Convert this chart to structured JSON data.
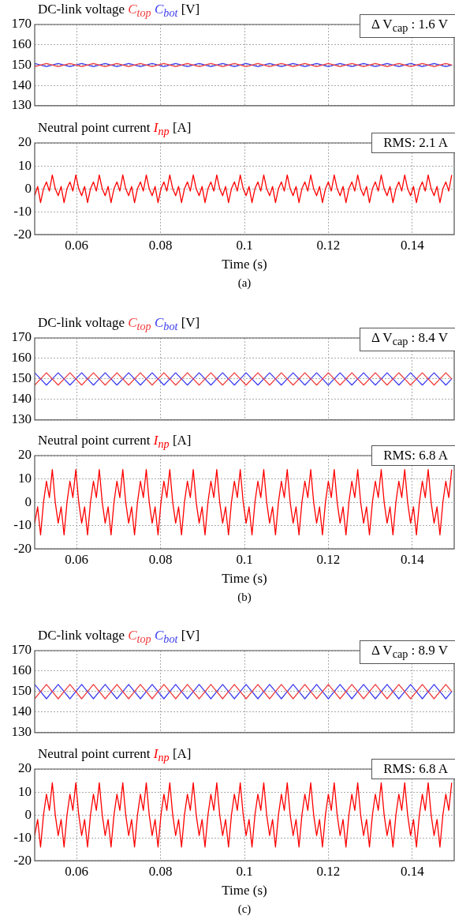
{
  "chart_data": [
    {
      "type": "line",
      "title": "DC-link voltage",
      "ylabel": "[V]",
      "legend": "top left",
      "tick_labels": "y",
      "grid": true,
      "xlim": [
        0.05,
        0.15
      ],
      "xticks": [
        0.06,
        0.08,
        0.1,
        0.12,
        0.14
      ],
      "ylim": [
        130,
        170
      ],
      "yticks": [
        130,
        140,
        150,
        160,
        170
      ],
      "annotations": [
        "Δ V$_{cap}$ : 1.6 V"
      ],
      "x": [
        0.05,
        0.0514,
        0.0528,
        0.0542,
        0.0556,
        0.057,
        0.0584,
        0.0598,
        0.0612,
        0.0626,
        0.064,
        0.0654,
        0.0668,
        0.0682,
        0.0696,
        0.071,
        0.0724,
        0.0738,
        0.0752,
        0.0766,
        0.078,
        0.0794,
        0.0808,
        0.0822,
        0.0836,
        0.085,
        0.0864,
        0.0878,
        0.0892,
        0.0906,
        0.092,
        0.0934,
        0.0948,
        0.0962,
        0.0976,
        0.099,
        0.1004,
        0.1018,
        0.1032,
        0.1046,
        0.106,
        0.1074,
        0.1088,
        0.1102,
        0.1116,
        0.113,
        0.1144,
        0.1158,
        0.1172,
        0.1186,
        0.12,
        0.1214,
        0.1228,
        0.1242,
        0.1256,
        0.127,
        0.1284,
        0.1298,
        0.1312,
        0.1326,
        0.134,
        0.1354,
        0.1368,
        0.1382,
        0.1396,
        0.141,
        0.1424,
        0.1438,
        0.1452,
        0.1466,
        0.148,
        0.1494
      ],
      "series": [
        {
          "name": "C$_{top}$",
          "color": "#f03c3c",
          "values": [
            149.2,
            150,
            150.8,
            150,
            149.2,
            150,
            150.8,
            150,
            149.2,
            150,
            150.8,
            150,
            149.2,
            150,
            150.8,
            150,
            149.2,
            150,
            150.8,
            150,
            149.2,
            150,
            150.8,
            150,
            149.2,
            150,
            150.8,
            150,
            149.2,
            150,
            150.8,
            150,
            149.2,
            150,
            150.8,
            150,
            149.2,
            150,
            150.8,
            150,
            149.2,
            150,
            150.8,
            150,
            149.2,
            150,
            150.8,
            150,
            149.2,
            150,
            150.8,
            150,
            149.2,
            150,
            150.8,
            150,
            149.2,
            150,
            150.8,
            150,
            149.2,
            150,
            150.8,
            150,
            149.2,
            150,
            150.8,
            150,
            149.2,
            150,
            150.8,
            150
          ]
        },
        {
          "name": "C$_{bot}$",
          "color": "#3c3cf0",
          "values": [
            150.8,
            150,
            149.2,
            150,
            150.8,
            150,
            149.2,
            150,
            150.8,
            150,
            149.2,
            150,
            150.8,
            150,
            149.2,
            150,
            150.8,
            150,
            149.2,
            150,
            150.8,
            150,
            149.2,
            150,
            150.8,
            150,
            149.2,
            150,
            150.8,
            150,
            149.2,
            150,
            150.8,
            150,
            149.2,
            150,
            150.8,
            150,
            149.2,
            150,
            150.8,
            150,
            149.2,
            150,
            150.8,
            150,
            149.2,
            150,
            150.8,
            150,
            149.2,
            150,
            150.8,
            150,
            149.2,
            150,
            150.8,
            150,
            149.2,
            150,
            150.8,
            150,
            149.2,
            150,
            150.8,
            150,
            149.2,
            150,
            150.8,
            150,
            149.2,
            150
          ]
        }
      ]
    },
    {
      "type": "line",
      "title": "Neutral point current",
      "ylabel": "[A]",
      "xlabel": "Time (s)",
      "legend": "top left",
      "grid": true,
      "xlim": [
        0.05,
        0.15
      ],
      "xticks": [
        0.06,
        0.08,
        0.1,
        0.12,
        0.14
      ],
      "ylim": [
        -20,
        20
      ],
      "yticks": [
        -20,
        -10,
        0,
        10,
        20
      ],
      "annotations": [
        "RMS: 2.1 A",
        "(a)"
      ],
      "x": [
        0.05,
        0.0507,
        0.0514,
        0.0521,
        0.0528,
        0.0535,
        0.0542,
        0.0549,
        0.0556,
        0.0563,
        0.057,
        0.0577,
        0.0584,
        0.0591,
        0.0598,
        0.0605,
        0.0612,
        0.0619,
        0.0626,
        0.0633,
        0.064,
        0.0647,
        0.0654,
        0.0661,
        0.0668,
        0.0675,
        0.0682,
        0.0689,
        0.0696,
        0.0703,
        0.071,
        0.0717,
        0.0724,
        0.0731,
        0.0738,
        0.0745,
        0.0752,
        0.0759,
        0.0766,
        0.0773,
        0.078,
        0.0787,
        0.0794,
        0.0801,
        0.0808,
        0.0815,
        0.0822,
        0.0829,
        0.0836,
        0.0843,
        0.085,
        0.0857,
        0.0864,
        0.0871,
        0.0878,
        0.0885,
        0.0892,
        0.0899,
        0.0906,
        0.0913,
        0.092,
        0.0927,
        0.0934,
        0.0941,
        0.0948,
        0.0955,
        0.0962,
        0.0969,
        0.0976,
        0.0983,
        0.099,
        0.0997,
        0.1004,
        0.1011,
        0.1018,
        0.1025,
        0.1032,
        0.1039,
        0.1046,
        0.1053,
        0.106,
        0.1067,
        0.1074,
        0.1081,
        0.1088,
        0.1095,
        0.1102,
        0.1109,
        0.1116,
        0.1123,
        0.113,
        0.1137,
        0.1144,
        0.1151,
        0.1158,
        0.1165,
        0.1172,
        0.1179,
        0.1186,
        0.1193,
        0.12,
        0.1207,
        0.1214,
        0.1221,
        0.1228,
        0.1235,
        0.1242,
        0.1249,
        0.1256,
        0.1263,
        0.127,
        0.1277,
        0.1284,
        0.1291,
        0.1298,
        0.1305,
        0.1312,
        0.1319,
        0.1326,
        0.1333,
        0.134,
        0.1347,
        0.1354,
        0.1361,
        0.1368,
        0.1375,
        0.1382,
        0.1389,
        0.1396,
        0.1403,
        0.141,
        0.1417,
        0.1424,
        0.1431,
        0.1438,
        0.1445,
        0.1452,
        0.1459,
        0.1466,
        0.1473,
        0.148,
        0.1487,
        0.1494
      ],
      "series": [
        {
          "name": "I$_{np}$",
          "color": "#ff0000",
          "values": [
            -3,
            1,
            -6,
            0,
            3,
            -1,
            6,
            0,
            -3,
            1,
            -6,
            0,
            3,
            -1,
            6,
            0,
            -3,
            1,
            -6,
            0,
            3,
            -1,
            6,
            0,
            -3,
            1,
            -6,
            0,
            3,
            -1,
            6,
            0,
            -3,
            1,
            -6,
            0,
            3,
            -1,
            6,
            0,
            -3,
            1,
            -6,
            0,
            3,
            -1,
            6,
            0,
            -3,
            1,
            -6,
            0,
            3,
            -1,
            6,
            0,
            -3,
            1,
            -6,
            0,
            3,
            -1,
            6,
            0,
            -3,
            1,
            -6,
            0,
            3,
            -1,
            6,
            0,
            -3,
            1,
            -6,
            0,
            3,
            -1,
            6,
            0,
            -3,
            1,
            -6,
            0,
            3,
            -1,
            6,
            0,
            -3,
            1,
            -6,
            0,
            3,
            -1,
            6,
            0,
            -3,
            1,
            -6,
            0,
            3,
            -1,
            6,
            0,
            -3,
            1,
            -6,
            0,
            3,
            -1,
            6,
            0,
            -3,
            1,
            -6,
            0,
            3,
            -1,
            6,
            0,
            -3,
            1,
            -6,
            0,
            3,
            -1,
            6,
            0,
            -3,
            1,
            -6,
            0,
            3,
            -1,
            6,
            0,
            -3,
            1,
            -6,
            0,
            3,
            -1,
            6
          ]
        }
      ]
    },
    {
      "type": "line",
      "title": "DC-link voltage",
      "ylabel": "[V]",
      "legend": "top left",
      "tick_labels": "y",
      "grid": true,
      "xlim": [
        0.05,
        0.15
      ],
      "xticks": [
        0.06,
        0.08,
        0.1,
        0.12,
        0.14
      ],
      "ylim": [
        130,
        170
      ],
      "yticks": [
        130,
        140,
        150,
        160,
        170
      ],
      "annotations": [
        "Δ V$_{cap}$ : 8.4 V"
      ],
      "x": [
        0.05,
        0.0514,
        0.0528,
        0.0542,
        0.0556,
        0.057,
        0.0584,
        0.0598,
        0.0612,
        0.0626,
        0.064,
        0.0654,
        0.0668,
        0.0682,
        0.0696,
        0.071,
        0.0724,
        0.0738,
        0.0752,
        0.0766,
        0.078,
        0.0794,
        0.0808,
        0.0822,
        0.0836,
        0.085,
        0.0864,
        0.0878,
        0.0892,
        0.0906,
        0.092,
        0.0934,
        0.0948,
        0.0962,
        0.0976,
        0.099,
        0.1004,
        0.1018,
        0.1032,
        0.1046,
        0.106,
        0.1074,
        0.1088,
        0.1102,
        0.1116,
        0.113,
        0.1144,
        0.1158,
        0.1172,
        0.1186,
        0.12,
        0.1214,
        0.1228,
        0.1242,
        0.1256,
        0.127,
        0.1284,
        0.1298,
        0.1312,
        0.1326,
        0.134,
        0.1354,
        0.1368,
        0.1382,
        0.1396,
        0.141,
        0.1424,
        0.1438,
        0.1452,
        0.1466,
        0.148,
        0.1494
      ],
      "series": [
        {
          "name": "C$_{top}$",
          "color": "#f03c3c",
          "values": [
            147,
            150,
            153,
            150,
            147,
            150,
            153,
            150,
            147,
            150,
            153,
            150,
            147,
            150,
            153,
            150,
            147,
            150,
            153,
            150,
            147,
            150,
            153,
            150,
            147,
            150,
            153,
            150,
            147,
            150,
            153,
            150,
            147,
            150,
            153,
            150,
            147,
            150,
            153,
            150,
            147,
            150,
            153,
            150,
            147,
            150,
            153,
            150,
            147,
            150,
            153,
            150,
            147,
            150,
            153,
            150,
            147,
            150,
            153,
            150,
            147,
            150,
            153,
            150,
            147,
            150,
            153,
            150,
            147,
            150,
            153,
            150
          ]
        },
        {
          "name": "C$_{bot}$",
          "color": "#3c3cf0",
          "values": [
            153,
            150,
            147,
            150,
            153,
            150,
            147,
            150,
            153,
            150,
            147,
            150,
            153,
            150,
            147,
            150,
            153,
            150,
            147,
            150,
            153,
            150,
            147,
            150,
            153,
            150,
            147,
            150,
            153,
            150,
            147,
            150,
            153,
            150,
            147,
            150,
            153,
            150,
            147,
            150,
            153,
            150,
            147,
            150,
            153,
            150,
            147,
            150,
            153,
            150,
            147,
            150,
            153,
            150,
            147,
            150,
            153,
            150,
            147,
            150,
            153,
            150,
            147,
            150,
            153,
            150,
            147,
            150,
            153,
            150,
            147,
            150
          ]
        }
      ]
    },
    {
      "type": "line",
      "title": "Neutral point current",
      "ylabel": "[A]",
      "xlabel": "Time (s)",
      "legend": "top left",
      "grid": true,
      "xlim": [
        0.05,
        0.15
      ],
      "xticks": [
        0.06,
        0.08,
        0.1,
        0.12,
        0.14
      ],
      "ylim": [
        -20,
        20
      ],
      "yticks": [
        -20,
        -10,
        0,
        10,
        20
      ],
      "annotations": [
        "RMS: 6.8 A",
        "(b)"
      ],
      "x": [
        0.05,
        0.0507,
        0.0514,
        0.0521,
        0.0528,
        0.0535,
        0.0542,
        0.0549,
        0.0556,
        0.0563,
        0.057,
        0.0577,
        0.0584,
        0.0591,
        0.0598,
        0.0605,
        0.0612,
        0.0619,
        0.0626,
        0.0633,
        0.064,
        0.0647,
        0.0654,
        0.0661,
        0.0668,
        0.0675,
        0.0682,
        0.0689,
        0.0696,
        0.0703,
        0.071,
        0.0717,
        0.0724,
        0.0731,
        0.0738,
        0.0745,
        0.0752,
        0.0759,
        0.0766,
        0.0773,
        0.078,
        0.0787,
        0.0794,
        0.0801,
        0.0808,
        0.0815,
        0.0822,
        0.0829,
        0.0836,
        0.0843,
        0.085,
        0.0857,
        0.0864,
        0.0871,
        0.0878,
        0.0885,
        0.0892,
        0.0899,
        0.0906,
        0.0913,
        0.092,
        0.0927,
        0.0934,
        0.0941,
        0.0948,
        0.0955,
        0.0962,
        0.0969,
        0.0976,
        0.0983,
        0.099,
        0.0997,
        0.1004,
        0.1011,
        0.1018,
        0.1025,
        0.1032,
        0.1039,
        0.1046,
        0.1053,
        0.106,
        0.1067,
        0.1074,
        0.1081,
        0.1088,
        0.1095,
        0.1102,
        0.1109,
        0.1116,
        0.1123,
        0.113,
        0.1137,
        0.1144,
        0.1151,
        0.1158,
        0.1165,
        0.1172,
        0.1179,
        0.1186,
        0.1193,
        0.12,
        0.1207,
        0.1214,
        0.1221,
        0.1228,
        0.1235,
        0.1242,
        0.1249,
        0.1256,
        0.1263,
        0.127,
        0.1277,
        0.1284,
        0.1291,
        0.1298,
        0.1305,
        0.1312,
        0.1319,
        0.1326,
        0.1333,
        0.134,
        0.1347,
        0.1354,
        0.1361,
        0.1368,
        0.1375,
        0.1382,
        0.1389,
        0.1396,
        0.1403,
        0.141,
        0.1417,
        0.1424,
        0.1431,
        0.1438,
        0.1445,
        0.1452,
        0.1459,
        0.1466,
        0.1473,
        0.148,
        0.1487,
        0.1494
      ],
      "series": [
        {
          "name": "I$_{np}$",
          "color": "#ff0000",
          "values": [
            -9,
            -2,
            -14,
            0,
            9,
            2,
            14,
            0,
            -9,
            -2,
            -14,
            0,
            9,
            2,
            14,
            0,
            -9,
            -2,
            -14,
            0,
            9,
            2,
            14,
            0,
            -9,
            -2,
            -14,
            0,
            9,
            2,
            14,
            0,
            -9,
            -2,
            -14,
            0,
            9,
            2,
            14,
            0,
            -9,
            -2,
            -14,
            0,
            9,
            2,
            14,
            0,
            -9,
            -2,
            -14,
            0,
            9,
            2,
            14,
            0,
            -9,
            -2,
            -14,
            0,
            9,
            2,
            14,
            0,
            -9,
            -2,
            -14,
            0,
            9,
            2,
            14,
            0,
            -9,
            -2,
            -14,
            0,
            9,
            2,
            14,
            0,
            -9,
            -2,
            -14,
            0,
            9,
            2,
            14,
            0,
            -9,
            -2,
            -14,
            0,
            9,
            2,
            14,
            0,
            -9,
            -2,
            -14,
            0,
            9,
            2,
            14,
            0,
            -9,
            -2,
            -14,
            0,
            9,
            2,
            14,
            0,
            -9,
            -2,
            -14,
            0,
            9,
            2,
            14,
            0,
            -9,
            -2,
            -14,
            0,
            9,
            2,
            14,
            0,
            -9,
            -2,
            -14,
            0,
            9,
            2,
            14,
            0,
            -9,
            -2,
            -14,
            0,
            9,
            2,
            14
          ]
        }
      ]
    },
    {
      "type": "line",
      "title": "DC-link voltage",
      "ylabel": "[V]",
      "legend": "top left",
      "tick_labels": "y",
      "grid": true,
      "xlim": [
        0.05,
        0.15
      ],
      "xticks": [
        0.06,
        0.08,
        0.1,
        0.12,
        0.14
      ],
      "ylim": [
        130,
        170
      ],
      "yticks": [
        130,
        140,
        150,
        160,
        170
      ],
      "annotations": [
        "Δ V$_{cap}$ : 8.9 V"
      ],
      "x": [
        0.05,
        0.0514,
        0.0528,
        0.0542,
        0.0556,
        0.057,
        0.0584,
        0.0598,
        0.0612,
        0.0626,
        0.064,
        0.0654,
        0.0668,
        0.0682,
        0.0696,
        0.071,
        0.0724,
        0.0738,
        0.0752,
        0.0766,
        0.078,
        0.0794,
        0.0808,
        0.0822,
        0.0836,
        0.085,
        0.0864,
        0.0878,
        0.0892,
        0.0906,
        0.092,
        0.0934,
        0.0948,
        0.0962,
        0.0976,
        0.099,
        0.1004,
        0.1018,
        0.1032,
        0.1046,
        0.106,
        0.1074,
        0.1088,
        0.1102,
        0.1116,
        0.113,
        0.1144,
        0.1158,
        0.1172,
        0.1186,
        0.12,
        0.1214,
        0.1228,
        0.1242,
        0.1256,
        0.127,
        0.1284,
        0.1298,
        0.1312,
        0.1326,
        0.134,
        0.1354,
        0.1368,
        0.1382,
        0.1396,
        0.141,
        0.1424,
        0.1438,
        0.1452,
        0.1466,
        0.148,
        0.1494
      ],
      "series": [
        {
          "name": "C$_{top}$",
          "color": "#f03c3c",
          "values": [
            146.5,
            150,
            153.5,
            150,
            146.5,
            150,
            153.5,
            150,
            146.5,
            150,
            153.5,
            150,
            146.5,
            150,
            153.5,
            150,
            146.5,
            150,
            153.5,
            150,
            146.5,
            150,
            153.5,
            150,
            146.5,
            150,
            153.5,
            150,
            146.5,
            150,
            153.5,
            150,
            146.5,
            150,
            153.5,
            150,
            146.5,
            150,
            153.5,
            150,
            146.5,
            150,
            153.5,
            150,
            146.5,
            150,
            153.5,
            150,
            146.5,
            150,
            153.5,
            150,
            146.5,
            150,
            153.5,
            150,
            146.5,
            150,
            153.5,
            150,
            146.5,
            150,
            153.5,
            150,
            146.5,
            150,
            153.5,
            150,
            146.5,
            150,
            153.5,
            150
          ]
        },
        {
          "name": "C$_{bot}$",
          "color": "#3c3cf0",
          "values": [
            153.5,
            150,
            146.5,
            150,
            153.5,
            150,
            146.5,
            150,
            153.5,
            150,
            146.5,
            150,
            153.5,
            150,
            146.5,
            150,
            153.5,
            150,
            146.5,
            150,
            153.5,
            150,
            146.5,
            150,
            153.5,
            150,
            146.5,
            150,
            153.5,
            150,
            146.5,
            150,
            153.5,
            150,
            146.5,
            150,
            153.5,
            150,
            146.5,
            150,
            153.5,
            150,
            146.5,
            150,
            153.5,
            150,
            146.5,
            150,
            153.5,
            150,
            146.5,
            150,
            153.5,
            150,
            146.5,
            150,
            153.5,
            150,
            146.5,
            150,
            153.5,
            150,
            146.5,
            150,
            153.5,
            150,
            146.5,
            150,
            153.5,
            150,
            146.5,
            150
          ]
        }
      ]
    },
    {
      "type": "line",
      "title": "Neutral point current",
      "ylabel": "[A]",
      "xlabel": "Time (s)",
      "legend": "top left",
      "grid": true,
      "xlim": [
        0.05,
        0.15
      ],
      "xticks": [
        0.06,
        0.08,
        0.1,
        0.12,
        0.14
      ],
      "ylim": [
        -20,
        20
      ],
      "yticks": [
        -20,
        -10,
        0,
        10,
        20
      ],
      "annotations": [
        "RMS: 6.8 A",
        "(c)"
      ],
      "x": [
        0.05,
        0.0507,
        0.0514,
        0.0521,
        0.0528,
        0.0535,
        0.0542,
        0.0549,
        0.0556,
        0.0563,
        0.057,
        0.0577,
        0.0584,
        0.0591,
        0.0598,
        0.0605,
        0.0612,
        0.0619,
        0.0626,
        0.0633,
        0.064,
        0.0647,
        0.0654,
        0.0661,
        0.0668,
        0.0675,
        0.0682,
        0.0689,
        0.0696,
        0.0703,
        0.071,
        0.0717,
        0.0724,
        0.0731,
        0.0738,
        0.0745,
        0.0752,
        0.0759,
        0.0766,
        0.0773,
        0.078,
        0.0787,
        0.0794,
        0.0801,
        0.0808,
        0.0815,
        0.0822,
        0.0829,
        0.0836,
        0.0843,
        0.085,
        0.0857,
        0.0864,
        0.0871,
        0.0878,
        0.0885,
        0.0892,
        0.0899,
        0.0906,
        0.0913,
        0.092,
        0.0927,
        0.0934,
        0.0941,
        0.0948,
        0.0955,
        0.0962,
        0.0969,
        0.0976,
        0.0983,
        0.099,
        0.0997,
        0.1004,
        0.1011,
        0.1018,
        0.1025,
        0.1032,
        0.1039,
        0.1046,
        0.1053,
        0.106,
        0.1067,
        0.1074,
        0.1081,
        0.1088,
        0.1095,
        0.1102,
        0.1109,
        0.1116,
        0.1123,
        0.113,
        0.1137,
        0.1144,
        0.1151,
        0.1158,
        0.1165,
        0.1172,
        0.1179,
        0.1186,
        0.1193,
        0.12,
        0.1207,
        0.1214,
        0.1221,
        0.1228,
        0.1235,
        0.1242,
        0.1249,
        0.1256,
        0.1263,
        0.127,
        0.1277,
        0.1284,
        0.1291,
        0.1298,
        0.1305,
        0.1312,
        0.1319,
        0.1326,
        0.1333,
        0.134,
        0.1347,
        0.1354,
        0.1361,
        0.1368,
        0.1375,
        0.1382,
        0.1389,
        0.1396,
        0.1403,
        0.141,
        0.1417,
        0.1424,
        0.1431,
        0.1438,
        0.1445,
        0.1452,
        0.1459,
        0.1466,
        0.1473,
        0.148,
        0.1487,
        0.1494
      ],
      "series": [
        {
          "name": "I$_{np}$",
          "color": "#ff0000",
          "values": [
            -9,
            -2,
            -14,
            0,
            9,
            2,
            14,
            0,
            -9,
            -2,
            -14,
            0,
            9,
            2,
            14,
            0,
            -9,
            -2,
            -14,
            0,
            9,
            2,
            14,
            0,
            -9,
            -2,
            -14,
            0,
            9,
            2,
            14,
            0,
            -9,
            -2,
            -14,
            0,
            9,
            2,
            14,
            0,
            -9,
            -2,
            -14,
            0,
            9,
            2,
            14,
            0,
            -9,
            -2,
            -14,
            0,
            9,
            2,
            14,
            0,
            -9,
            -2,
            -14,
            0,
            9,
            2,
            14,
            0,
            -9,
            -2,
            -14,
            0,
            9,
            2,
            14,
            0,
            -9,
            -2,
            -14,
            0,
            9,
            2,
            14,
            0,
            -9,
            -2,
            -14,
            0,
            9,
            2,
            14,
            0,
            -9,
            -2,
            -14,
            0,
            9,
            2,
            14,
            0,
            -9,
            -2,
            -14,
            0,
            9,
            2,
            14,
            0,
            -9,
            -2,
            -14,
            0,
            9,
            2,
            14,
            0,
            -9,
            -2,
            -14,
            0,
            9,
            2,
            14,
            0,
            -9,
            -2,
            -14,
            0,
            9,
            2,
            14,
            0,
            -9,
            -2,
            -14,
            0,
            9,
            2,
            14,
            0,
            -9,
            -2,
            -14,
            0,
            9,
            2,
            14
          ]
        }
      ]
    }
  ]
}
